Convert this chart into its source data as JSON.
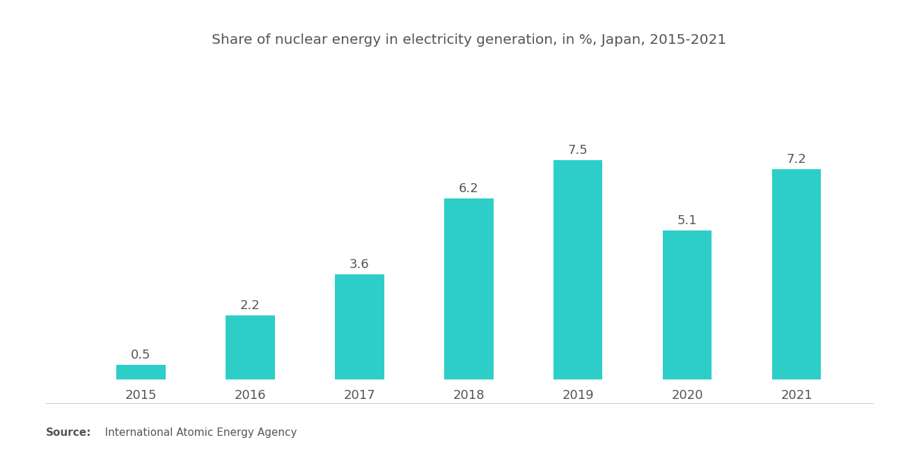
{
  "title": "Share of nuclear energy in electricity generation, in %, Japan, 2015-2021",
  "categories": [
    "2015",
    "2016",
    "2017",
    "2018",
    "2019",
    "2020",
    "2021"
  ],
  "values": [
    0.5,
    2.2,
    3.6,
    6.2,
    7.5,
    5.1,
    7.2
  ],
  "bar_color": "#2ECEC8",
  "background_color": "#ffffff",
  "title_fontsize": 14.5,
  "label_fontsize": 13,
  "tick_fontsize": 13,
  "source_bold": "Source:",
  "source_rest": "  International Atomic Energy Agency",
  "ylim": [
    0,
    9.5
  ],
  "bar_width": 0.45,
  "text_color": "#555555"
}
